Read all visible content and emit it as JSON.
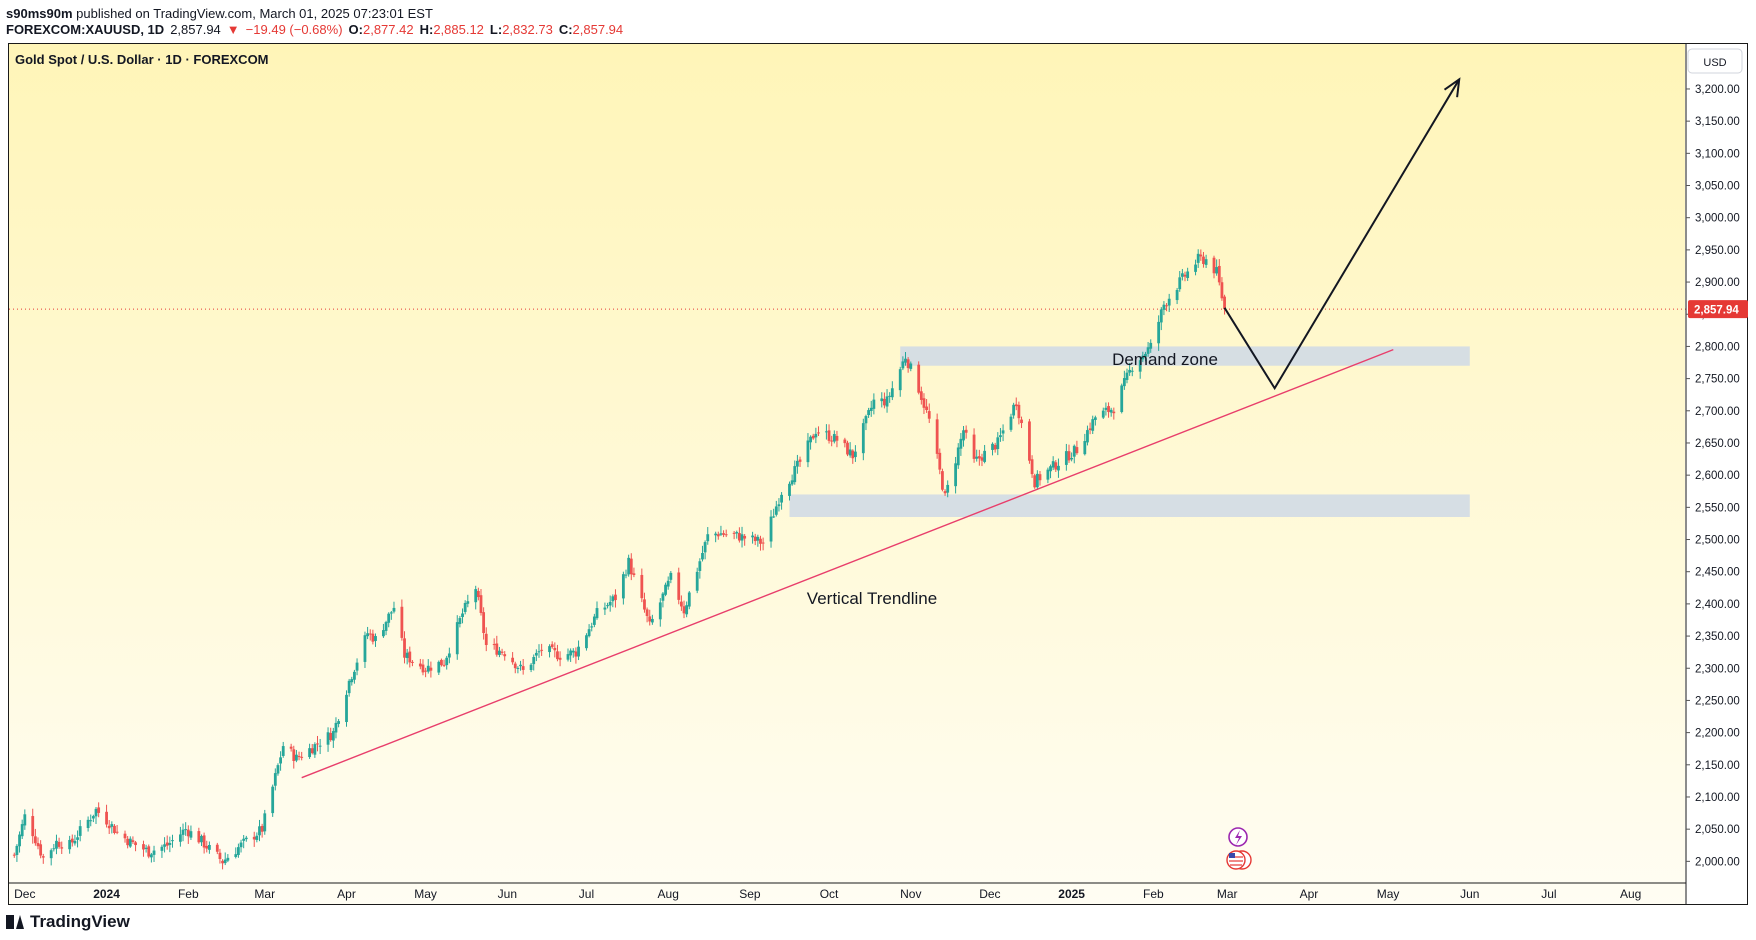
{
  "header": {
    "publisher": "s90ms90m",
    "published_text": "published on TradingView.com, March 01, 2025 07:23:01 EST",
    "symbol": "FOREXCOM:XAUUSD, 1D",
    "last": "2,857.94",
    "change_arrow": "▼",
    "change": "−19.49 (−0.68%)",
    "o_label": "O:",
    "o": "2,877.42",
    "h_label": "H:",
    "h": "2,885.12",
    "l_label": "L:",
    "l": "2,832.73",
    "c_label": "C:",
    "c": "2,857.94"
  },
  "legend": {
    "title": "Gold Spot / U.S. Dollar · 1D · FOREXCOM"
  },
  "currency_button": "USD",
  "annotations": {
    "demand_zone": "Demand zone",
    "trendline": "Vertical Trendline"
  },
  "footer": {
    "brand": "TradingView"
  },
  "colors": {
    "up": "#26a69a",
    "down": "#ef5350",
    "trendline": "#e83e6b",
    "zone": "#cfd9e6",
    "price_tag": "#e53935",
    "bg_top": "#fff5b8",
    "bg_bottom": "#fffdf3"
  },
  "chart_data": {
    "type": "candlestick",
    "title": "Gold Spot / U.S. Dollar · 1D · FOREXCOM",
    "currency": "USD",
    "ylim": [
      1985,
      3245
    ],
    "y_ticks": [
      2000,
      2050,
      2100,
      2150,
      2200,
      2250,
      2300,
      2350,
      2400,
      2450,
      2500,
      2550,
      2600,
      2650,
      2700,
      2750,
      2800,
      2850,
      2900,
      2950,
      3000,
      3050,
      3100,
      3150,
      3200
    ],
    "y_tick_labels": [
      "2,000.00",
      "2,050.00",
      "2,100.00",
      "2,150.00",
      "2,200.00",
      "2,250.00",
      "2,300.00",
      "2,350.00",
      "2,400.00",
      "2,450.00",
      "2,500.00",
      "2,550.00",
      "2,600.00",
      "2,650.00",
      "2,700.00",
      "2,750.00",
      "2,800.00",
      "2,850.00",
      "2,900.00",
      "2,950.00",
      "3,000.00",
      "3,050.00",
      "3,100.00",
      "3,150.00",
      "3,200.00"
    ],
    "x_ticks": [
      {
        "label": "Dec",
        "date": "2023-12-01"
      },
      {
        "label": "2024",
        "date": "2024-01-01",
        "bold": true
      },
      {
        "label": "Feb",
        "date": "2024-02-01"
      },
      {
        "label": "Mar",
        "date": "2024-03-01"
      },
      {
        "label": "Apr",
        "date": "2024-04-01"
      },
      {
        "label": "May",
        "date": "2024-05-01"
      },
      {
        "label": "Jun",
        "date": "2024-06-01"
      },
      {
        "label": "Jul",
        "date": "2024-07-01"
      },
      {
        "label": "Aug",
        "date": "2024-08-01"
      },
      {
        "label": "Sep",
        "date": "2024-09-01"
      },
      {
        "label": "Oct",
        "date": "2024-10-01"
      },
      {
        "label": "Nov",
        "date": "2024-11-01"
      },
      {
        "label": "Dec",
        "date": "2024-12-01"
      },
      {
        "label": "2025",
        "date": "2025-01-01",
        "bold": true
      },
      {
        "label": "Feb",
        "date": "2025-02-01"
      },
      {
        "label": "Mar",
        "date": "2025-03-01"
      },
      {
        "label": "Apr",
        "date": "2025-04-01"
      },
      {
        "label": "May",
        "date": "2025-05-01"
      },
      {
        "label": "Jun",
        "date": "2025-06-01"
      },
      {
        "label": "Jul",
        "date": "2025-07-01"
      },
      {
        "label": "Aug",
        "date": "2025-08-01"
      }
    ],
    "close_path": [
      [
        "2023-11-27",
        2010
      ],
      [
        "2023-12-01",
        2070
      ],
      [
        "2023-12-04",
        2045
      ],
      [
        "2023-12-08",
        2005
      ],
      [
        "2023-12-13",
        2030
      ],
      [
        "2023-12-18",
        2025
      ],
      [
        "2023-12-28",
        2080
      ],
      [
        "2024-01-02",
        2060
      ],
      [
        "2024-01-05",
        2045
      ],
      [
        "2024-01-10",
        2030
      ],
      [
        "2024-01-17",
        2015
      ],
      [
        "2024-01-24",
        2025
      ],
      [
        "2024-01-31",
        2050
      ],
      [
        "2024-02-05",
        2035
      ],
      [
        "2024-02-14",
        2000
      ],
      [
        "2024-02-21",
        2025
      ],
      [
        "2024-02-29",
        2050
      ],
      [
        "2024-03-04",
        2115
      ],
      [
        "2024-03-08",
        2180
      ],
      [
        "2024-03-13",
        2160
      ],
      [
        "2024-03-20",
        2180
      ],
      [
        "2024-03-27",
        2200
      ],
      [
        "2024-04-02",
        2280
      ],
      [
        "2024-04-09",
        2355
      ],
      [
        "2024-04-12",
        2345
      ],
      [
        "2024-04-19",
        2395
      ],
      [
        "2024-04-23",
        2320
      ],
      [
        "2024-05-01",
        2300
      ],
      [
        "2024-05-08",
        2310
      ],
      [
        "2024-05-15",
        2385
      ],
      [
        "2024-05-20",
        2425
      ],
      [
        "2024-05-24",
        2335
      ],
      [
        "2024-05-31",
        2325
      ],
      [
        "2024-06-07",
        2295
      ],
      [
        "2024-06-14",
        2330
      ],
      [
        "2024-06-21",
        2320
      ],
      [
        "2024-06-27",
        2325
      ],
      [
        "2024-07-05",
        2385
      ],
      [
        "2024-07-12",
        2410
      ],
      [
        "2024-07-17",
        2465
      ],
      [
        "2024-07-25",
        2365
      ],
      [
        "2024-08-02",
        2440
      ],
      [
        "2024-08-07",
        2390
      ],
      [
        "2024-08-16",
        2505
      ],
      [
        "2024-08-20",
        2510
      ],
      [
        "2024-08-28",
        2505
      ],
      [
        "2024-09-06",
        2495
      ],
      [
        "2024-09-13",
        2575
      ],
      [
        "2024-09-20",
        2620
      ],
      [
        "2024-09-26",
        2670
      ],
      [
        "2024-10-04",
        2655
      ],
      [
        "2024-10-10",
        2630
      ],
      [
        "2024-10-18",
        2715
      ],
      [
        "2024-10-23",
        2715
      ],
      [
        "2024-10-30",
        2785
      ],
      [
        "2024-11-04",
        2735
      ],
      [
        "2024-11-08",
        2685
      ],
      [
        "2024-11-14",
        2565
      ],
      [
        "2024-11-21",
        2670
      ],
      [
        "2024-11-25",
        2620
      ],
      [
        "2024-12-04",
        2650
      ],
      [
        "2024-12-11",
        2715
      ],
      [
        "2024-12-18",
        2590
      ],
      [
        "2024-12-27",
        2620
      ],
      [
        "2025-01-03",
        2640
      ],
      [
        "2025-01-10",
        2690
      ],
      [
        "2025-01-17",
        2705
      ],
      [
        "2025-01-24",
        2770
      ],
      [
        "2025-01-31",
        2800
      ],
      [
        "2025-02-05",
        2865
      ],
      [
        "2025-02-11",
        2900
      ],
      [
        "2025-02-18",
        2935
      ],
      [
        "2025-02-21",
        2935
      ],
      [
        "2025-02-25",
        2915
      ],
      [
        "2025-02-28",
        2858
      ]
    ],
    "last_price": 2857.94,
    "last_price_label": "2,857.94",
    "zones": [
      {
        "label": "Demand zone",
        "from": "2024-10-28",
        "to": "2025-06-01",
        "low": 2770,
        "high": 2800
      },
      {
        "label": "",
        "from": "2024-09-16",
        "to": "2025-06-01",
        "low": 2535,
        "high": 2570
      }
    ],
    "trendline": {
      "label": "Vertical Trendline",
      "p1": [
        "2024-03-15",
        2130
      ],
      "p2": [
        "2025-05-03",
        2795
      ]
    },
    "projection": [
      [
        "2025-02-28",
        2860
      ],
      [
        "2025-03-19",
        2735
      ],
      [
        "2025-05-28",
        3215
      ]
    ],
    "grid": false,
    "legend_position": "top-left"
  }
}
